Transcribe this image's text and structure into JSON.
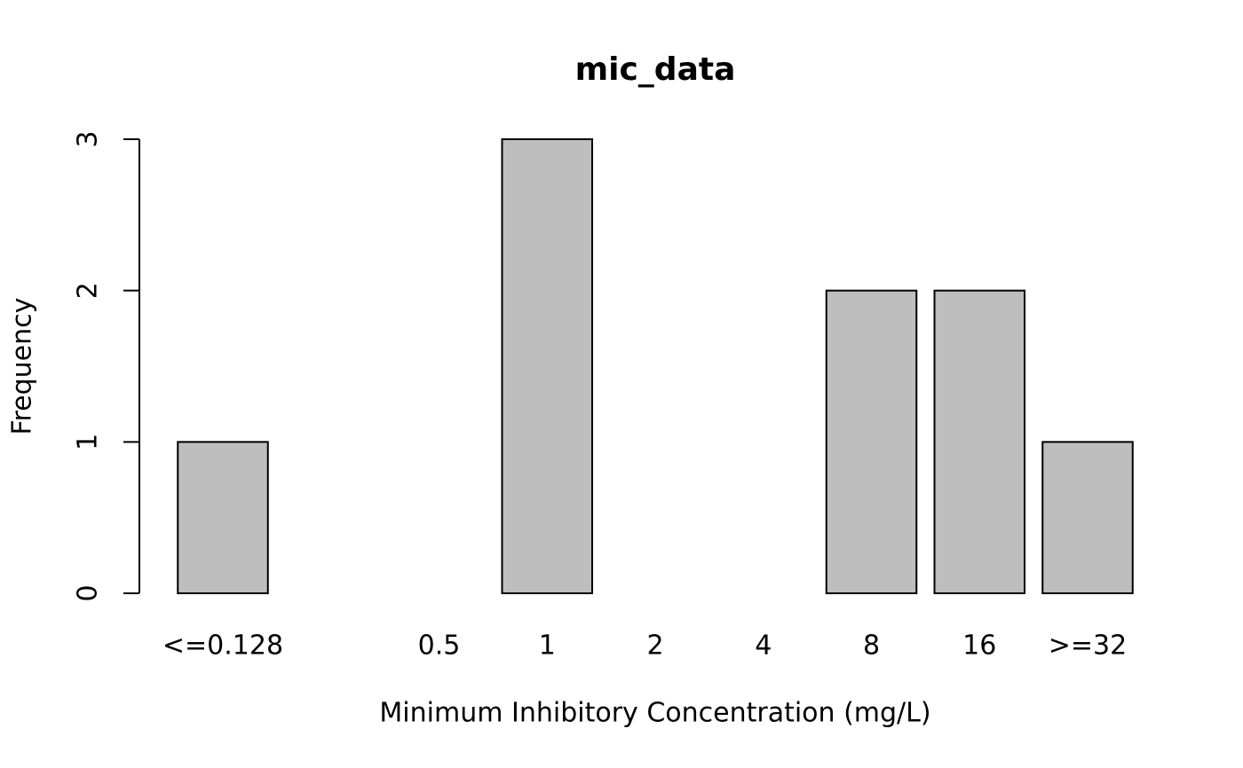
{
  "chart_data": {
    "type": "bar",
    "title": "mic_data",
    "x_label": "Minimum Inhibitory Concentration (mg/L)",
    "y_label": "Frequency",
    "categories": [
      "<=0.128",
      null,
      "0.5",
      "1",
      "2",
      "4",
      "8",
      "16",
      ">=32"
    ],
    "values": [
      1,
      0,
      0,
      3,
      0,
      0,
      2,
      2,
      1
    ],
    "color": "#bebebe",
    "ylim": [
      0,
      3
    ],
    "yticks": [
      0,
      1,
      2,
      3
    ]
  }
}
